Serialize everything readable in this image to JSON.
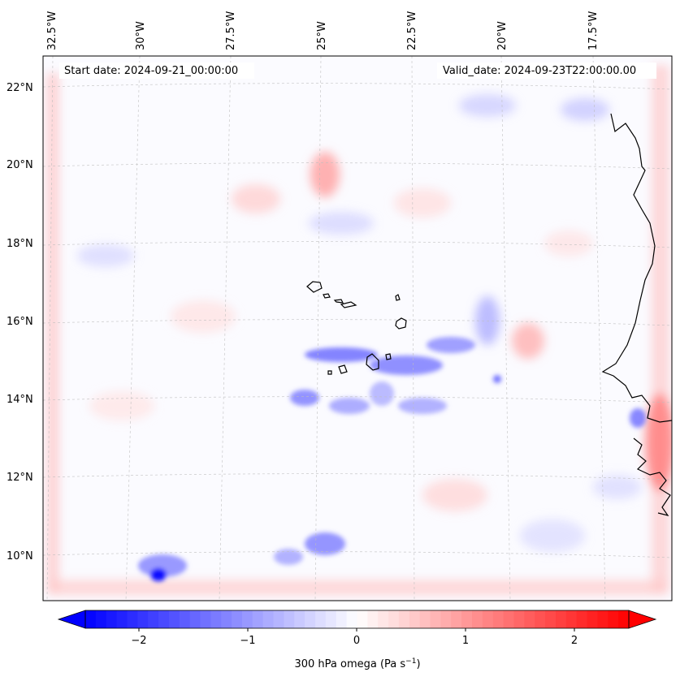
{
  "map": {
    "start_date_text": "Start date: 2024-09-21_00:00:00",
    "valid_date_text": "Valid_date: 2024-09-23T22:00:00.00",
    "lon_labels": [
      "32.5°W",
      "30°W",
      "27.5°W",
      "25°W",
      "22.5°W",
      "20°W",
      "17.5°W"
    ],
    "lat_labels": [
      "22°N",
      "20°N",
      "18°N",
      "16°N",
      "14°N",
      "12°N",
      "10°N"
    ],
    "field": "300 hPa omega",
    "colormap": "bwr"
  },
  "colorbar": {
    "ticks": [
      "−2",
      "−1",
      "0",
      "1",
      "2"
    ],
    "label": "300 hPa omega (Pa s",
    "label_sup": "−1",
    "label_end": ")",
    "vmin": -2.6,
    "vmax": 2.6,
    "colors": {
      "min": "#0000ff",
      "mid": "#ffffff",
      "max": "#ff0000"
    }
  }
}
